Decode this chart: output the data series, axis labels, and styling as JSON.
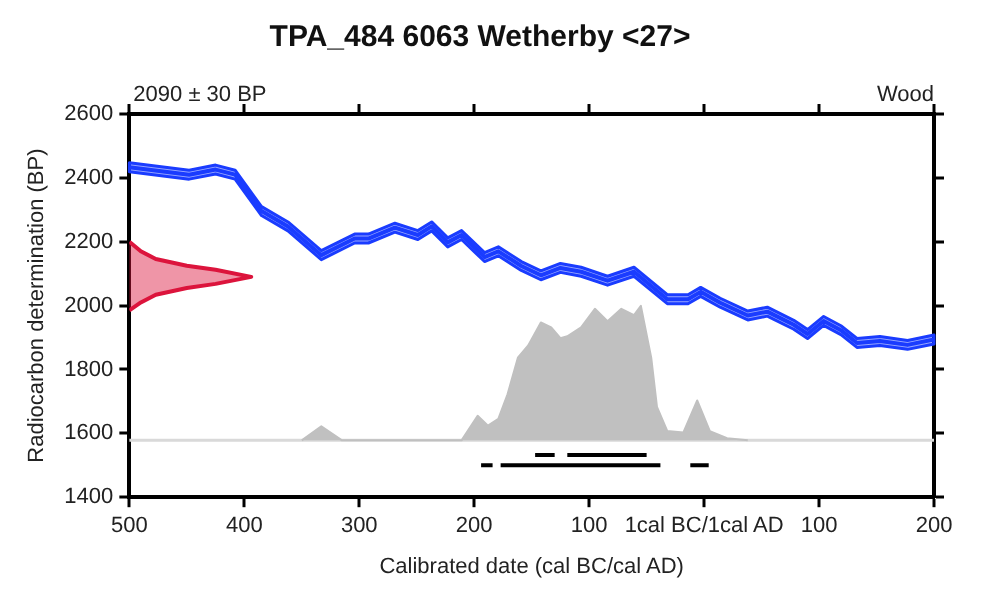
{
  "chart_data": {
    "type": "line",
    "title": "TPA_484 6063 Wetherby <27>",
    "xlabel": "Calibrated date (cal BC/cal AD)",
    "ylabel": "Radiocarbon determination (BP)",
    "annotations": [
      "2090 ± 30 BP",
      "Wood"
    ],
    "xlim": [
      -500,
      200
    ],
    "xticks": [
      {
        "value": -500,
        "label": "500"
      },
      {
        "value": -400,
        "label": "400"
      },
      {
        "value": -300,
        "label": "300"
      },
      {
        "value": -200,
        "label": "200"
      },
      {
        "value": -100,
        "label": "100"
      },
      {
        "value": 0,
        "label": "1cal BC/1cal AD"
      },
      100,
      200
    ],
    "ylim": [
      1400,
      2600
    ],
    "yticks": [
      1400,
      1600,
      1800,
      2000,
      2200,
      2400,
      2600
    ],
    "grid": false,
    "legend": false,
    "marker": "none",
    "ref_lines": [
      {
        "axis": "y",
        "value": 1578,
        "color": "#d9d9d9"
      }
    ],
    "series": [
      {
        "type": "line",
        "color": "#1a3cff",
        "x": [
          -500,
          -448,
          -425,
          -408,
          -385,
          -362,
          -333,
          -304,
          -292,
          -269,
          -249,
          -237,
          -223,
          -211,
          -191,
          -179,
          -159,
          -142,
          -125,
          -107,
          -84,
          -61,
          -32,
          -14,
          -3,
          14,
          38,
          55,
          78,
          90,
          104,
          119,
          133,
          153,
          177,
          200
        ],
        "values": [
          2433,
          2410,
          2426,
          2410,
          2296,
          2248,
          2158,
          2210,
          2210,
          2244,
          2221,
          2248,
          2198,
          2221,
          2152,
          2170,
          2124,
          2095,
          2118,
          2106,
          2078,
          2106,
          2020,
          2020,
          2043,
          2009,
          1969,
          1981,
          1940,
          1911,
          1952,
          1923,
          1883,
          1889,
          1877,
          1894
        ],
        "lower": [
          2419,
          2396,
          2412,
          2396,
          2282,
          2234,
          2144,
          2196,
          2196,
          2230,
          2207,
          2234,
          2184,
          2207,
          2138,
          2156,
          2110,
          2081,
          2104,
          2092,
          2064,
          2092,
          2006,
          2006,
          2029,
          1995,
          1955,
          1967,
          1926,
          1897,
          1938,
          1909,
          1869,
          1875,
          1863,
          1880
        ],
        "upper": [
          2447,
          2424,
          2440,
          2424,
          2310,
          2262,
          2172,
          2224,
          2224,
          2258,
          2235,
          2262,
          2212,
          2235,
          2166,
          2184,
          2138,
          2109,
          2132,
          2120,
          2092,
          2120,
          2034,
          2034,
          2057,
          2023,
          1983,
          1995,
          1954,
          1925,
          1966,
          1937,
          1897,
          1903,
          1891,
          1908
        ]
      },
      {
        "type": "area",
        "color": "#dc143c",
        "x": [
          -500,
          -490,
          -477,
          -450,
          -425,
          -394,
          -425,
          -450,
          -477,
          -490,
          -500
        ],
        "values": [
          2200,
          2170,
          2146,
          2125,
          2112,
          2090,
          2068,
          2055,
          2034,
          2010,
          1985
        ]
      },
      {
        "type": "area",
        "color": "#c0c0c0",
        "x": [
          -350,
          -333,
          -315,
          -211,
          -197,
          -188,
          -179,
          -171,
          -162,
          -153,
          -142,
          -133,
          -125,
          -119,
          -107,
          -95,
          -84,
          -72,
          -61,
          -55,
          -46,
          -41,
          -32,
          -18,
          -6,
          5,
          20,
          38
        ],
        "values": [
          1578,
          1622,
          1578,
          1578,
          1655,
          1624,
          1645,
          1722,
          1837,
          1875,
          1947,
          1932,
          1898,
          1904,
          1932,
          1990,
          1951,
          1990,
          1970,
          1999,
          1837,
          1683,
          1607,
          1603,
          1703,
          1607,
          1585,
          1578
        ]
      },
      {
        "type": "line",
        "color": "#000000",
        "x": [
          -147,
          -130,
          -125,
          -119,
          -50
        ],
        "values": [
          1532,
          1532,
          null,
          1532,
          1532
        ]
      },
      {
        "type": "line",
        "color": "#000000",
        "x": [
          -194,
          -184,
          -180,
          -177,
          -38,
          -25,
          -12,
          4
        ],
        "values": [
          1500,
          1500,
          null,
          1500,
          1500,
          null,
          1500,
          1500
        ]
      }
    ]
  }
}
